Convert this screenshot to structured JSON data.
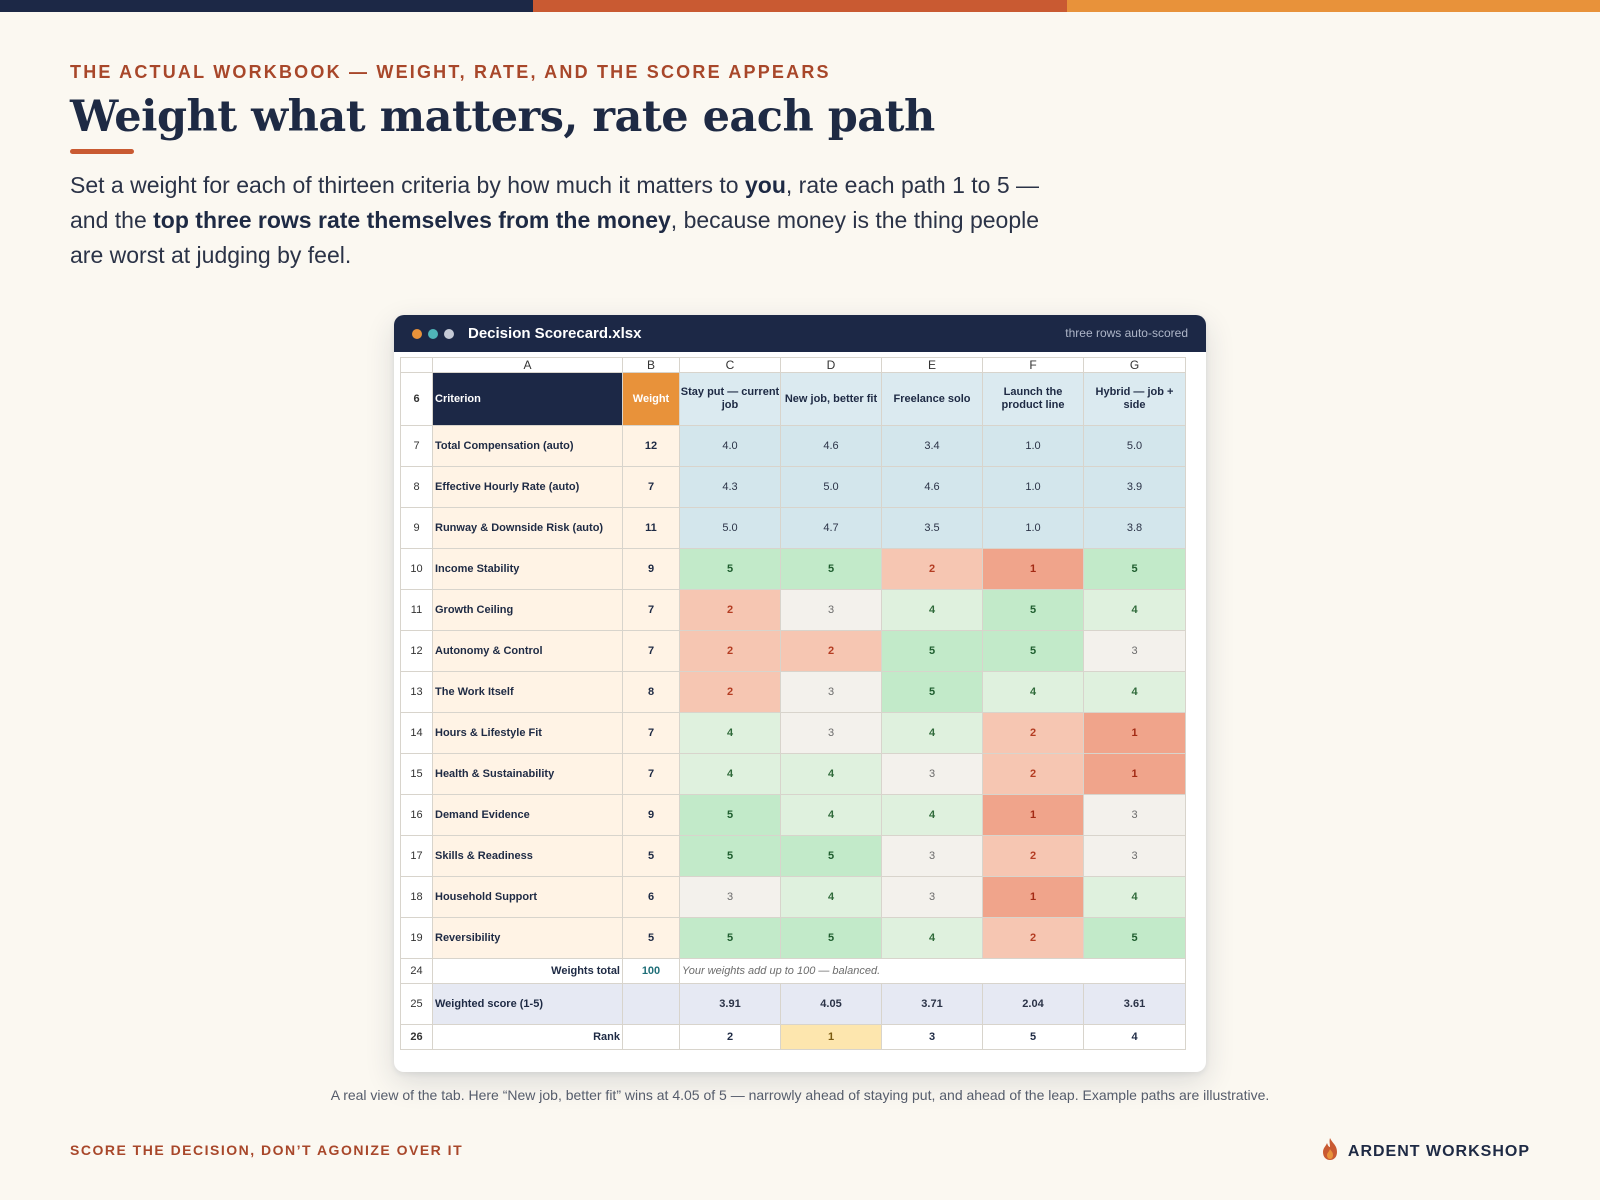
{
  "colors": {
    "navy": "#1c2846",
    "accent_orange": "#c95a32",
    "accent_amber": "#e8923a",
    "eyebrow": "#a8472a",
    "background": "#fbf8f1"
  },
  "eyebrow": "THE ACTUAL WORKBOOK — WEIGHT, RATE, AND THE SCORE APPEARS",
  "title": "Weight what matters, rate each path",
  "lead": {
    "p1": "Set a weight for each of thirteen criteria by how much it matters to ",
    "b1": "you",
    "p2": ", rate each path 1 to 5 — and the ",
    "b2": "top three rows rate themselves from the money",
    "p3": ", because money is the thing people are worst at judging by feel."
  },
  "window": {
    "filename": "Decision Scorecard.xlsx",
    "badge": "three rows auto-scored",
    "dot_colors": [
      "#e8923a",
      "#4fb5b8",
      "#c5cad6"
    ]
  },
  "sheet": {
    "columns": [
      "A",
      "B",
      "C",
      "D",
      "E",
      "F",
      "G"
    ],
    "header_row_num": "6",
    "criterion_header": "Criterion",
    "weight_header": "Weight",
    "paths": [
      "Stay put — current job",
      "New job, better fit",
      "Freelance solo",
      "Launch the product line",
      "Hybrid — job + side"
    ],
    "rows": [
      {
        "num": "7",
        "criterion": "Total Compensation   (auto)",
        "weight": "12",
        "auto": true,
        "ratings": [
          "4.0",
          "4.6",
          "3.4",
          "1.0",
          "5.0"
        ]
      },
      {
        "num": "8",
        "criterion": "Effective Hourly Rate   (auto)",
        "weight": "7",
        "auto": true,
        "ratings": [
          "4.3",
          "5.0",
          "4.6",
          "1.0",
          "3.9"
        ]
      },
      {
        "num": "9",
        "criterion": "Runway & Downside Risk   (auto)",
        "weight": "11",
        "auto": true,
        "ratings": [
          "5.0",
          "4.7",
          "3.5",
          "1.0",
          "3.8"
        ]
      },
      {
        "num": "10",
        "criterion": "Income Stability",
        "weight": "9",
        "auto": false,
        "ratings": [
          "5",
          "5",
          "2",
          "1",
          "5"
        ]
      },
      {
        "num": "11",
        "criterion": "Growth Ceiling",
        "weight": "7",
        "auto": false,
        "ratings": [
          "2",
          "3",
          "4",
          "5",
          "4"
        ]
      },
      {
        "num": "12",
        "criterion": "Autonomy & Control",
        "weight": "7",
        "auto": false,
        "ratings": [
          "2",
          "2",
          "5",
          "5",
          "3"
        ]
      },
      {
        "num": "13",
        "criterion": "The Work Itself",
        "weight": "8",
        "auto": false,
        "ratings": [
          "2",
          "3",
          "5",
          "4",
          "4"
        ]
      },
      {
        "num": "14",
        "criterion": "Hours & Lifestyle Fit",
        "weight": "7",
        "auto": false,
        "ratings": [
          "4",
          "3",
          "4",
          "2",
          "1"
        ]
      },
      {
        "num": "15",
        "criterion": "Health & Sustainability",
        "weight": "7",
        "auto": false,
        "ratings": [
          "4",
          "4",
          "3",
          "2",
          "1"
        ]
      },
      {
        "num": "16",
        "criterion": "Demand Evidence",
        "weight": "9",
        "auto": false,
        "ratings": [
          "5",
          "4",
          "4",
          "1",
          "3"
        ]
      },
      {
        "num": "17",
        "criterion": "Skills & Readiness",
        "weight": "5",
        "auto": false,
        "ratings": [
          "5",
          "5",
          "3",
          "2",
          "3"
        ]
      },
      {
        "num": "18",
        "criterion": "Household Support",
        "weight": "6",
        "auto": false,
        "ratings": [
          "3",
          "4",
          "3",
          "1",
          "4"
        ]
      },
      {
        "num": "19",
        "criterion": "Reversibility",
        "weight": "5",
        "auto": false,
        "ratings": [
          "5",
          "5",
          "4",
          "2",
          "5"
        ]
      }
    ],
    "weights_total": {
      "num": "24",
      "label": "Weights total",
      "value": "100",
      "note": "Your weights add up to 100 — balanced."
    },
    "weighted_score": {
      "num": "25",
      "label": "Weighted score (1-5)",
      "values": [
        "3.91",
        "4.05",
        "3.71",
        "2.04",
        "3.61"
      ]
    },
    "rank": {
      "num": "26",
      "label": "Rank",
      "values": [
        "2",
        "1",
        "3",
        "5",
        "4"
      ]
    }
  },
  "caption": "A real view of the tab. Here “New job, better fit” wins at 4.05 of 5 — narrowly ahead of staying put, and ahead of the leap. Example paths are illustrative.",
  "footer": {
    "tagline": "SCORE THE DECISION, DON’T AGONIZE OVER IT",
    "brand": "ARDENT WORKSHOP",
    "brand_icon": "flame-icon"
  }
}
